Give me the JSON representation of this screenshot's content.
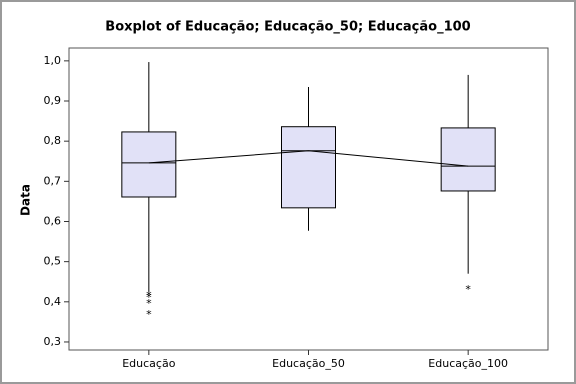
{
  "chart_data": {
    "type": "box",
    "title": "Boxplot of Educação; Educação_50; Educação_100",
    "y_label": "Data",
    "categories": [
      "Educação",
      "Educação_50",
      "Educação_100"
    ],
    "boxes": [
      {
        "whisker_low": 0.425,
        "q1": 0.661,
        "median": 0.746,
        "q3": 0.823,
        "whisker_high": 0.997,
        "outliers": [
          0.42,
          0.415,
          0.4,
          0.372
        ]
      },
      {
        "whisker_low": 0.577,
        "q1": 0.634,
        "median": 0.776,
        "q3": 0.836,
        "whisker_high": 0.935,
        "outliers": []
      },
      {
        "whisker_low": 0.47,
        "q1": 0.676,
        "median": 0.738,
        "q3": 0.833,
        "whisker_high": 0.965,
        "outliers": [
          0.435
        ]
      }
    ],
    "color": "#e1e1f7",
    "connect_medians": true,
    "ylim": [
      0.28,
      1.032
    ],
    "yticks": [
      {
        "value": 0.3,
        "label": "0,3"
      },
      {
        "value": 0.4,
        "label": "0,4"
      },
      {
        "value": 0.5,
        "label": "0,5"
      },
      {
        "value": 0.6,
        "label": "0,6"
      },
      {
        "value": 0.7,
        "label": "0,7"
      },
      {
        "value": 0.8,
        "label": "0,8"
      },
      {
        "value": 0.9,
        "label": "0,9"
      },
      {
        "value": 1.0,
        "label": "1,0"
      }
    ]
  }
}
